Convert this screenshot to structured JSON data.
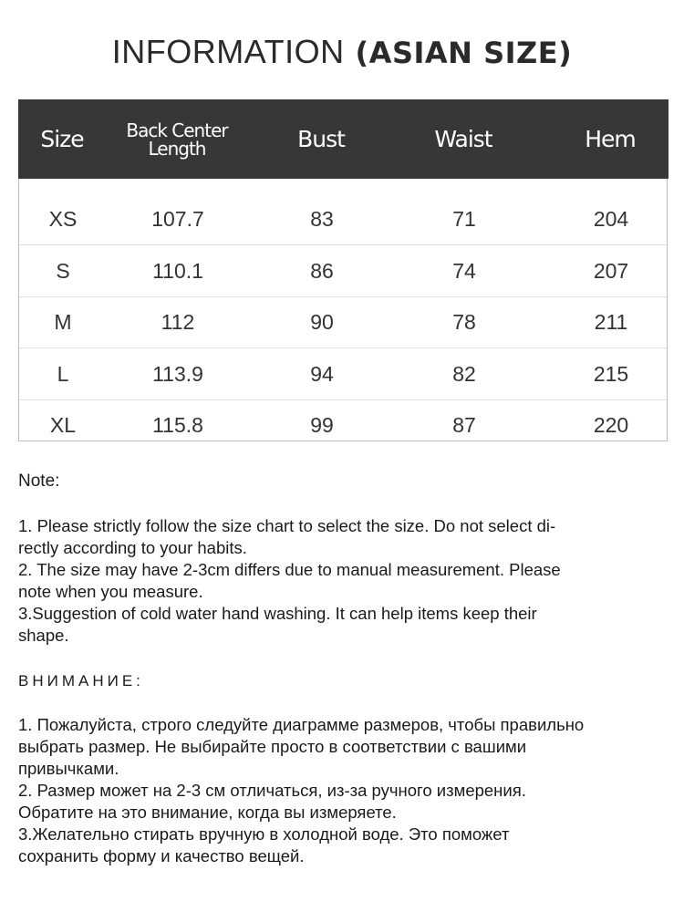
{
  "title": {
    "light": "INFORMATION",
    "bold": "(ASIAN SIZE)"
  },
  "table": {
    "headers": [
      "Size",
      "Back Center",
      "Length",
      "Bust",
      "Waist",
      "Hem"
    ],
    "rows": [
      [
        "XS",
        "107.7",
        "83",
        "71",
        "204"
      ],
      [
        "S",
        "110.1",
        "86",
        "74",
        "207"
      ],
      [
        "M",
        "112",
        "90",
        "78",
        "211"
      ],
      [
        "L",
        "113.9",
        "94",
        "82",
        "215"
      ],
      [
        "XL",
        "115.8",
        "99",
        "87",
        "220"
      ]
    ]
  },
  "note_en": {
    "heading": "Note:",
    "lines": [
      "1. Please strictly follow the size chart  to select the size. Do not select di-",
      "rectly according to your habits.",
      "2. The size may have 2-3cm differs due to manual measurement. Please",
      "note when you measure.",
      "3.Suggestion of cold water hand washing. It can help items keep their",
      "shape."
    ]
  },
  "note_ru": {
    "heading": "ВНИМАНИЕ:",
    "lines": [
      "1. Пожалуйста, строго следуйте диаграмме размеров, чтобы правильно",
      "выбрать размер. Не выбирайте просто в соответствии с вашими",
      "привычками.",
      "2. Размер может на 2-3 см отличаться, из-за ручного измерения.",
      "Обратите на это внимание, когда вы измеряете.",
      "3.Желательно стирать вручную в холодной воде. Это поможет",
      "сохранить форму и качество вещей."
    ]
  }
}
